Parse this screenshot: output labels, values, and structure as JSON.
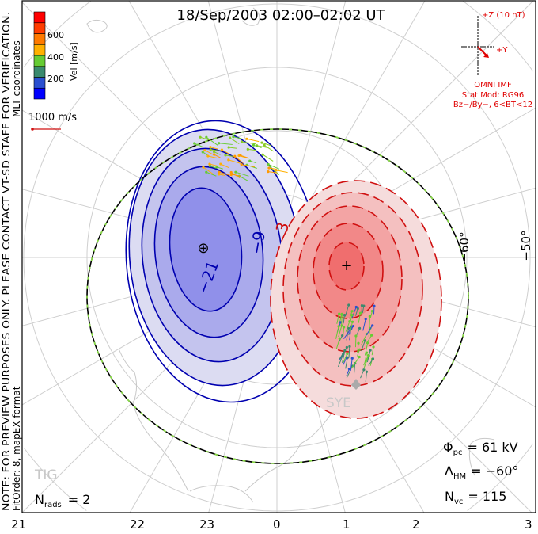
{
  "title": "18/Sep/2003 02:00–02:02 UT",
  "side_text": {
    "note": "NOTE: FOR PREVIEW PURPOSES ONLY. PLEASE CONTACT VT-SD STAFF FOR VERIFICATION.",
    "fit": "FitOrder: 8, mapEX format",
    "coords": "MLT coordinates"
  },
  "colorbar": {
    "label": "Vel [m/s]",
    "ticks": [
      "200",
      "400",
      "600"
    ],
    "colors": [
      "#0000ff",
      "#2a4fd0",
      "#3a8a6e",
      "#66cc33",
      "#ffb000",
      "#ff7a00",
      "#ff3c00",
      "#ff0000"
    ]
  },
  "scale_vector": "1000 m/s",
  "imf": {
    "z_label": "+Z (10 nT)",
    "y_label": "+Y",
    "source": "OMNI IMF",
    "model": "Stat Mod: RG96",
    "bin": "Bz−/By−, 6<BT<12"
  },
  "lat_labels": [
    "−60°",
    "−50°"
  ],
  "contour_labels": [
    "−21",
    "−9",
    "3"
  ],
  "radars": [
    "TIG",
    "SYE"
  ],
  "stats": {
    "phi_sym": "Φ",
    "phi_sub": "pc",
    "phi_val": "= 61 kV",
    "hm_sym": "Λ",
    "hm_sub": "HM",
    "hm_val": "= −60°",
    "nvc_sym": "N",
    "nvc_sub": "vc",
    "nvc_val": "= 115",
    "nrads_sym": "N",
    "nrads_sub": "rads",
    "nrads_val": "= 2"
  },
  "mlt_labels": [
    "21",
    "22",
    "23",
    "0",
    "1",
    "2",
    "3"
  ],
  "colors": {
    "positive": "#d01010",
    "negative": "#0000b0",
    "hm_boundary": "#000000",
    "hm_dash": "#88dd44"
  }
}
